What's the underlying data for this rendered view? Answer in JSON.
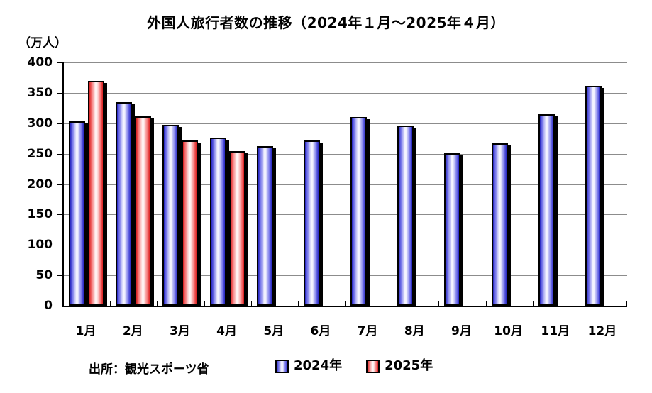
{
  "chart_data": {
    "type": "bar",
    "title": "外国人旅行者数の推移（2024年１月～2025年４月）",
    "unit_label": "（万人）",
    "source": "出所：観光スポーツ省",
    "categories": [
      "1月",
      "2月",
      "3月",
      "4月",
      "5月",
      "6月",
      "7月",
      "8月",
      "9月",
      "10月",
      "11月",
      "12月"
    ],
    "series": [
      {
        "name": "2024年",
        "values": [
          303,
          335,
          297,
          276,
          262,
          272,
          310,
          296,
          251,
          267,
          315,
          362
        ],
        "color_dark": "#2424BE",
        "color_mid": "#6E6EE8",
        "color_light": "#F4F4FF"
      },
      {
        "name": "2025年",
        "values": [
          370,
          311,
          272,
          254
        ],
        "color_dark": "#D81E1E",
        "color_mid": "#F46E6E",
        "color_light": "#FFF4F4"
      }
    ],
    "ylim": [
      0,
      400
    ],
    "ytick_step": 50,
    "grid": true,
    "gridline_color": "#8c8c8c",
    "legend_position": "bottom"
  }
}
